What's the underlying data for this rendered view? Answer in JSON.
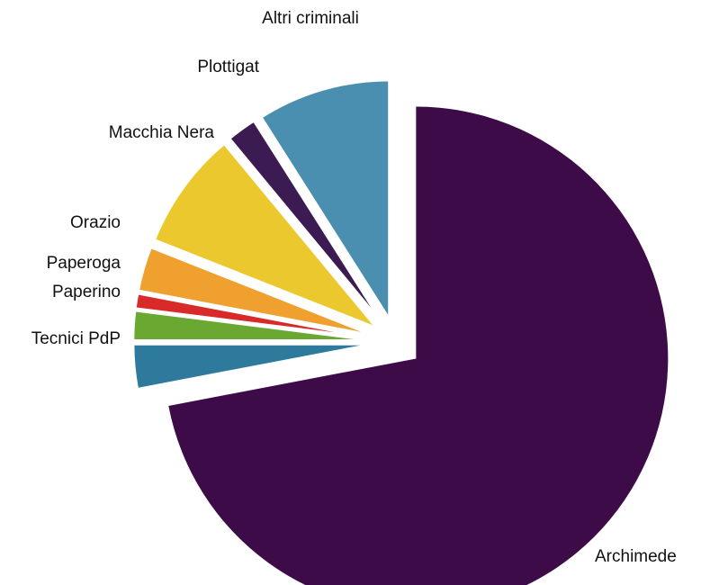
{
  "chart_data": {
    "type": "pie",
    "title": "",
    "start_angle_deg": 0,
    "direction": "clockwise",
    "exploded": true,
    "series": [
      {
        "label": "Archimede",
        "value": 72.0,
        "color": "#3c0b48"
      },
      {
        "label": "Tecnici PdP",
        "value": 3.0,
        "color": "#2e7a9c"
      },
      {
        "label": "Paperino",
        "value": 2.0,
        "color": "#6aa832"
      },
      {
        "label": "Paperoga",
        "value": 1.0,
        "color": "#d82a28"
      },
      {
        "label": "Orazio",
        "value": 3.0,
        "color": "#f0a02e"
      },
      {
        "label": "Macchia Nera",
        "value": 8.0,
        "color": "#ebc92e"
      },
      {
        "label": "Plottigat",
        "value": 2.0,
        "color": "#3c1a52"
      },
      {
        "label": "Altri criminali",
        "value": 9.0,
        "color": "#4a8eb0"
      }
    ]
  }
}
